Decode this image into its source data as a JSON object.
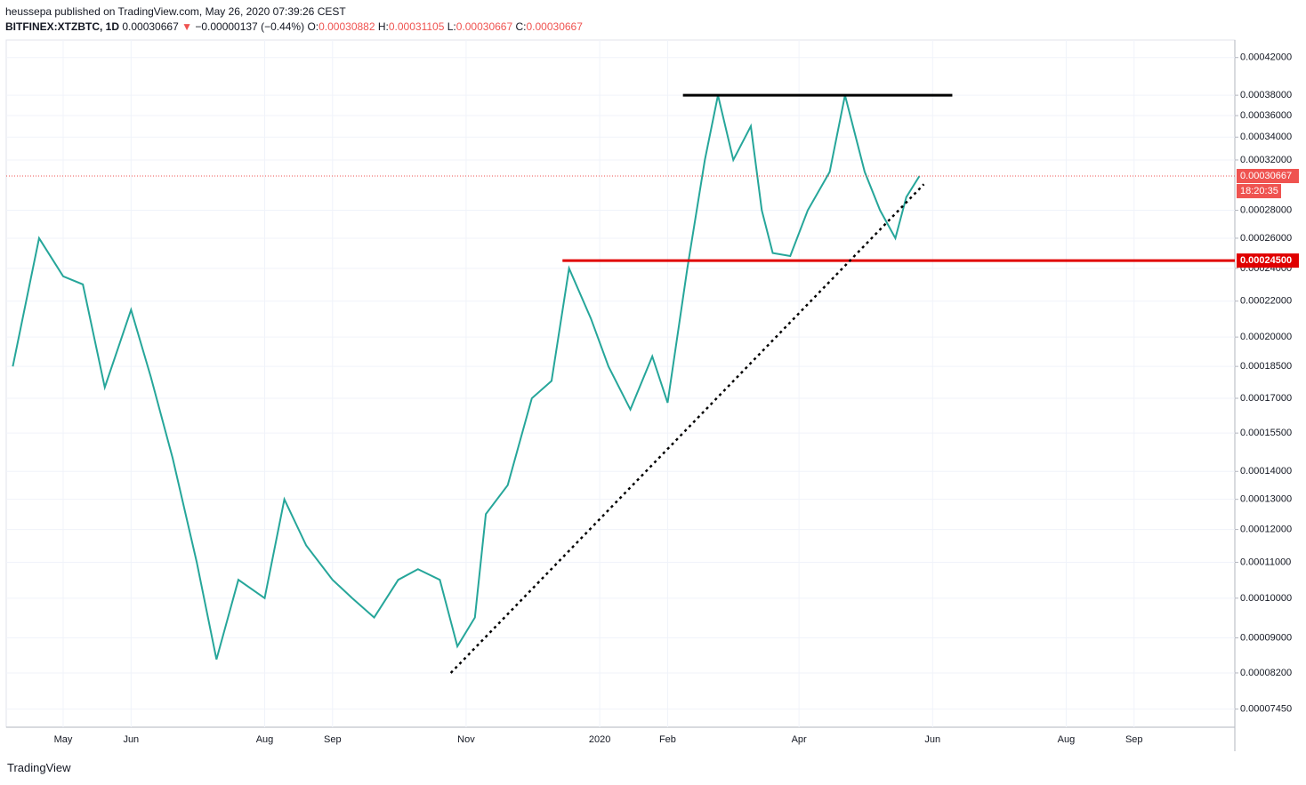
{
  "header": {
    "publisher": "heussepa published on TradingView.com, May 26, 2020 07:39:26 CEST",
    "symbol": "BITFINEX:XTZBTC, 1D",
    "last": "0.00030667",
    "arrow": "▼",
    "change": "−0.00000137 (−0.44%)",
    "o_label": "O:",
    "o": "0.00030882",
    "h_label": "H:",
    "h": "0.00031105",
    "l_label": "L:",
    "l": "0.00030667",
    "c_label": "C:",
    "c": "0.00030667"
  },
  "footer": {
    "logo": "TradingView"
  },
  "chart_data": {
    "type": "line",
    "log_scale": true,
    "grid": true,
    "xlim": [
      "2019-04-05",
      "2020-10-17"
    ],
    "ylim": [
      7.1e-05,
      0.00044
    ],
    "xticks": [
      {
        "value": "2019-05-01",
        "label": "May"
      },
      {
        "value": "2019-06-01",
        "label": "Jun"
      },
      {
        "value": "2019-08-01",
        "label": "Aug"
      },
      {
        "value": "2019-09-01",
        "label": "Sep"
      },
      {
        "value": "2019-11-01",
        "label": "Nov"
      },
      {
        "value": "2020-01-01",
        "label": "2020"
      },
      {
        "value": "2020-02-01",
        "label": "Feb"
      },
      {
        "value": "2020-04-01",
        "label": "Apr"
      },
      {
        "value": "2020-06-01",
        "label": "Jun"
      },
      {
        "value": "2020-08-01",
        "label": "Aug"
      },
      {
        "value": "2020-09-01",
        "label": "Sep"
      }
    ],
    "yticks": [
      {
        "value": 0.00042,
        "label": "0.00042000"
      },
      {
        "value": 0.00038,
        "label": "0.00038000"
      },
      {
        "value": 0.00036,
        "label": "0.00036000"
      },
      {
        "value": 0.00034,
        "label": "0.00034000"
      },
      {
        "value": 0.00032,
        "label": "0.00032000"
      },
      {
        "value": 0.00028,
        "label": "0.00028000"
      },
      {
        "value": 0.00026,
        "label": "0.00026000"
      },
      {
        "value": 0.00024,
        "label": "0.00024000"
      },
      {
        "value": 0.00022,
        "label": "0.00022000"
      },
      {
        "value": 0.0002,
        "label": "0.00020000"
      },
      {
        "value": 0.000185,
        "label": "0.00018500"
      },
      {
        "value": 0.00017,
        "label": "0.00017000"
      },
      {
        "value": 0.000155,
        "label": "0.00015500"
      },
      {
        "value": 0.00014,
        "label": "0.00014000"
      },
      {
        "value": 0.00013,
        "label": "0.00013000"
      },
      {
        "value": 0.00012,
        "label": "0.00012000"
      },
      {
        "value": 0.00011,
        "label": "0.00011000"
      },
      {
        "value": 0.0001,
        "label": "0.00010000"
      },
      {
        "value": 9e-05,
        "label": "0.00009000"
      },
      {
        "value": 8.2e-05,
        "label": "0.00008200"
      },
      {
        "value": 7.45e-05,
        "label": "0.00007450"
      }
    ],
    "x": [
      "2019-04-08",
      "2019-04-20",
      "2019-05-01",
      "2019-05-10",
      "2019-05-20",
      "2019-06-01",
      "2019-06-10",
      "2019-06-20",
      "2019-07-01",
      "2019-07-10",
      "2019-07-20",
      "2019-08-01",
      "2019-08-10",
      "2019-08-20",
      "2019-09-01",
      "2019-09-10",
      "2019-09-20",
      "2019-10-01",
      "2019-10-10",
      "2019-10-20",
      "2019-10-28",
      "2019-11-05",
      "2019-11-10",
      "2019-11-20",
      "2019-12-01",
      "2019-12-10",
      "2019-12-18",
      "2019-12-28",
      "2020-01-05",
      "2020-01-15",
      "2020-01-25",
      "2020-02-01",
      "2020-02-10",
      "2020-02-18",
      "2020-02-24",
      "2020-03-02",
      "2020-03-10",
      "2020-03-15",
      "2020-03-20",
      "2020-03-28",
      "2020-04-05",
      "2020-04-15",
      "2020-04-22",
      "2020-05-01",
      "2020-05-08",
      "2020-05-15",
      "2020-05-20",
      "2020-05-26"
    ],
    "series": [
      {
        "name": "XTZBTC",
        "color": "#26a69a",
        "values": [
          0.000185,
          0.00026,
          0.000235,
          0.00023,
          0.000175,
          0.000215,
          0.00018,
          0.000145,
          0.00011,
          8.5e-05,
          0.000105,
          0.0001,
          0.00013,
          0.000115,
          0.000105,
          0.0001,
          9.5e-05,
          0.000105,
          0.000108,
          0.000105,
          8.8e-05,
          9.5e-05,
          0.000125,
          0.000135,
          0.00017,
          0.000178,
          0.00024,
          0.00021,
          0.000185,
          0.000165,
          0.00019,
          0.000168,
          0.00024,
          0.00032,
          0.00038,
          0.00032,
          0.00035,
          0.00028,
          0.00025,
          0.000248,
          0.00028,
          0.00031,
          0.00038,
          0.00031,
          0.00028,
          0.00026,
          0.00029,
          0.00030667
        ]
      }
    ],
    "last_price": {
      "value": 0.00030667,
      "label": "0.00030667"
    },
    "countdown": "18:20:35",
    "support": {
      "value": 0.000245,
      "label": "0.00024500",
      "color": "#e00000"
    },
    "lines": [
      {
        "color": "#000000",
        "dash": false,
        "x": [
          "2020-02-08",
          "2020-06-10"
        ],
        "y": [
          0.00038,
          0.00038
        ]
      },
      {
        "color": "#e00000",
        "dash": false,
        "x": [
          "2019-12-15",
          "2020-10-17"
        ],
        "y": [
          0.000245,
          0.000245
        ]
      },
      {
        "color": "#000000",
        "dash": true,
        "x": [
          "2019-10-25",
          "2020-05-28"
        ],
        "y": [
          8.2e-05,
          0.0003
        ]
      }
    ]
  }
}
